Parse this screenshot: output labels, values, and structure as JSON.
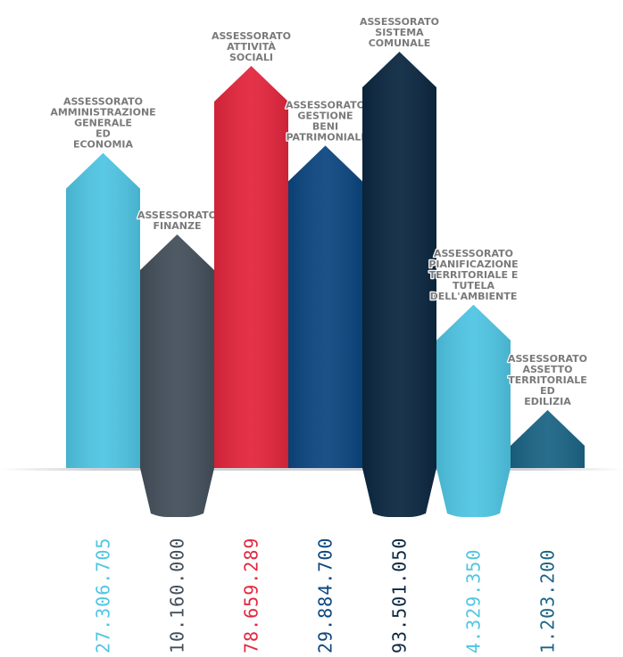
{
  "chart_data": {
    "type": "bar",
    "categories": [
      [
        "ASSESSORATO",
        "AMMINISTRAZIONE",
        "GENERALE",
        "ED",
        "ECONOMIA"
      ],
      [
        "ASSESSORATO",
        "FINANZE"
      ],
      [
        "ASSESSORATO",
        "ATTIVITÀ",
        "SOCIALI"
      ],
      [
        "ASSESSORATO",
        "GESTIONE",
        "BENI",
        "PATRIMONIALI"
      ],
      [
        "ASSESSORATO",
        "SISTEMA",
        "COMUNALE"
      ],
      [
        "ASSESSORATO",
        "PIANIFICAZIONE",
        "TERRITORIALE E",
        "TUTELA",
        "DELL'AMBIENTE"
      ],
      [
        "ASSESSORATO",
        "ASSETTO",
        "TERRITORIALE",
        "ED",
        "EDILIZIA"
      ]
    ],
    "values": [
      27306705,
      10160000,
      78659289,
      29884700,
      93501050,
      4329350,
      1203200
    ],
    "value_labels": [
      "27.306.705",
      "10.160.000",
      "78.659.289",
      "29.884.700",
      "93.501.050",
      "4.329.350",
      "1.203.200"
    ],
    "colors": [
      "#4fc5e3",
      "#434f5b",
      "#e3263d",
      "#0c4680",
      "#0b2740",
      "#4fc5e3",
      "#1b6485"
    ]
  }
}
